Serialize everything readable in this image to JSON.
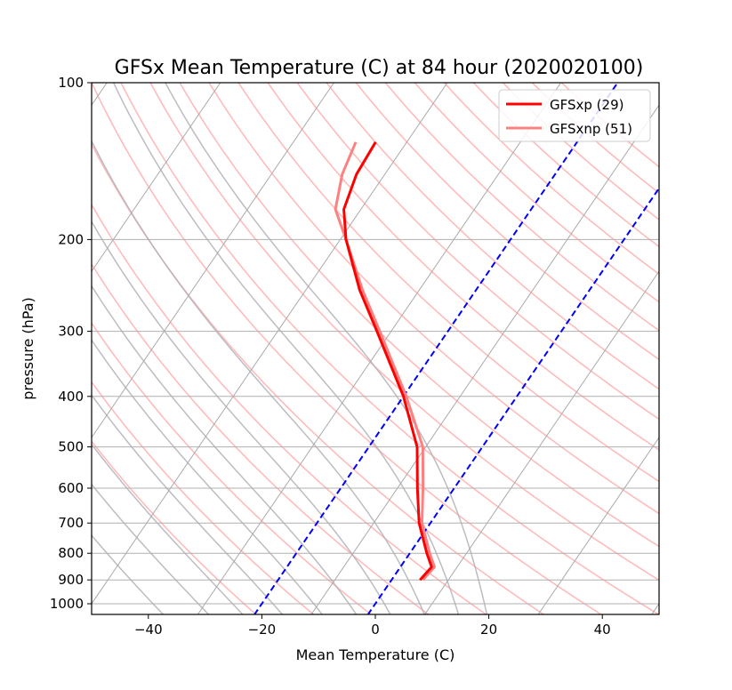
{
  "chart_data": {
    "type": "line",
    "title": "GFSx Mean Temperature (C) at 84 hour  (2020020100)",
    "xlabel": "Mean Temperature (C)",
    "ylabel": "pressure (hPa)",
    "xlim": [
      -50,
      50
    ],
    "ylim": [
      1050,
      100
    ],
    "y_scale": "log",
    "skew": true,
    "x_ticks": [
      -40,
      -20,
      0,
      20,
      40
    ],
    "x_tick_labels": [
      "−40",
      "−20",
      "0",
      "20",
      "40"
    ],
    "y_ticks": [
      1000,
      900,
      800,
      700,
      600,
      500,
      400,
      300,
      200,
      100
    ],
    "y_tick_labels": [
      "1000",
      "900",
      "800",
      "700",
      "600",
      "500",
      "400",
      "300",
      "200",
      "100"
    ],
    "grid": true,
    "legend_position": "top-right",
    "series": [
      {
        "name": "GFSxp (29)",
        "color": "#ff0000",
        "pressure": [
          900,
          850,
          800,
          700,
          600,
          500,
          400,
          300,
          250,
          200,
          175,
          150,
          130
        ],
        "temperature": [
          5,
          5.5,
          3,
          -2,
          -6.5,
          -11.5,
          -20,
          -32.5,
          -40.5,
          -49,
          -53,
          -55,
          -55.5
        ]
      },
      {
        "name": "GFSxnp (51)",
        "color": "#ff8080",
        "pressure": [
          900,
          850,
          800,
          700,
          600,
          500,
          400,
          300,
          250,
          200,
          175,
          150,
          130
        ],
        "temperature": [
          5.5,
          6,
          3.5,
          -1.5,
          -5.5,
          -10.5,
          -19.5,
          -32,
          -40,
          -49,
          -54.5,
          -57.5,
          -59
        ]
      }
    ],
    "reference_lines": [
      {
        "kind": "dashed-isotherm",
        "color": "#0000ff",
        "temperature": -20
      },
      {
        "kind": "dashed-isotherm",
        "color": "#0000ff",
        "temperature": 0
      }
    ],
    "background": {
      "isotherm_color": "#aaaaaa",
      "dry_adiabat_color": "#ffbbbb",
      "moist_adiabat_color": "#b0b0b8"
    }
  }
}
